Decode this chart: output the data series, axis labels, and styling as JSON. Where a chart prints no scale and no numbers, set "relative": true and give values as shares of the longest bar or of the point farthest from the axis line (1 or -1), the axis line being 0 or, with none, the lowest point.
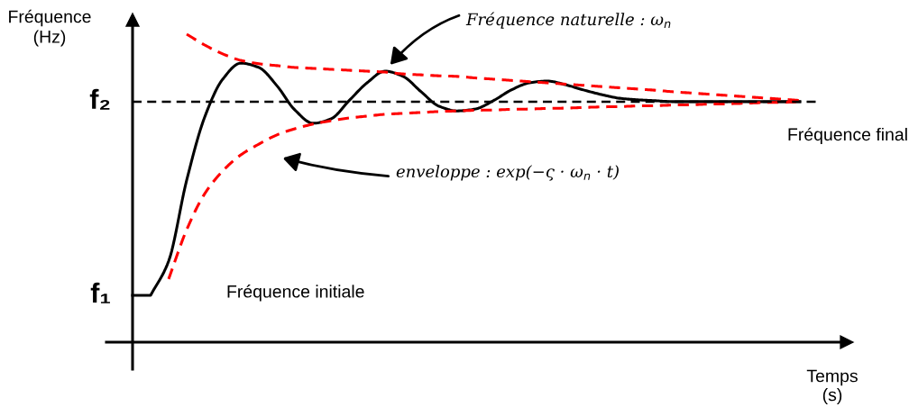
{
  "chart_data": {
    "type": "line",
    "relative": true,
    "xlabel": "Temps\n(s)",
    "ylabel": "Fréquence\n(Hz)",
    "legend": false,
    "categories": [
      null,
      null,
      null,
      null,
      null,
      null,
      null,
      null,
      null,
      null,
      null,
      null,
      null,
      null,
      null,
      null,
      null,
      null,
      null,
      null,
      null,
      null,
      null,
      null,
      null,
      null,
      null,
      null,
      null,
      null,
      null,
      null,
      null,
      null,
      null,
      null,
      null,
      null
    ],
    "series": [
      {
        "color": "#000000",
        "line_style": "solid",
        "values": [
          0.152,
          0.152,
          0.263,
          0.526,
          0.731,
          0.854,
          0.906,
          0.892,
          0.833,
          0.754,
          0.711,
          0.725,
          0.784,
          0.842,
          0.88,
          0.863,
          0.813,
          0.766,
          0.751,
          0.757,
          0.784,
          0.819,
          0.842,
          0.848,
          0.836,
          0.819,
          0.804,
          0.792,
          0.787,
          0.784,
          0.781,
          0.781,
          0.781,
          0.781,
          0.781,
          0.781,
          0.781,
          0.781
        ]
      },
      {
        "color": "#ff0000",
        "line_style": "dashed",
        "values": [
          null,
          null,
          null,
          1.0,
          0.965,
          0.936,
          0.915,
          0.904,
          0.898,
          0.892,
          0.889,
          0.886,
          0.883,
          0.88,
          0.877,
          0.871,
          0.868,
          0.865,
          0.863,
          0.858,
          0.854,
          0.85,
          0.846,
          0.842,
          0.838,
          0.834,
          0.83,
          0.826,
          0.822,
          0.818,
          0.813,
          0.809,
          0.805,
          0.801,
          0.797,
          0.793,
          0.789,
          0.785
        ]
      },
      {
        "color": "#ff0000",
        "line_style": "dashed",
        "values": [
          null,
          null,
          0.205,
          0.365,
          0.482,
          0.556,
          0.608,
          0.643,
          0.673,
          0.693,
          0.708,
          0.719,
          0.728,
          0.734,
          0.74,
          0.743,
          0.746,
          0.749,
          0.751,
          0.753,
          0.754,
          0.756,
          0.757,
          0.759,
          0.76,
          0.762,
          0.764,
          0.765,
          0.767,
          0.768,
          0.77,
          0.771,
          0.773,
          0.774,
          0.776,
          0.778,
          0.779,
          0.781
        ]
      }
    ],
    "ref_lines": [
      {
        "axis": "y",
        "value": 0.781,
        "label": "f₂",
        "color": "#000000",
        "line_style": "dashed"
      }
    ],
    "annotations": [
      "f₁",
      "Fréquence naturelle : ω$_{n}$",
      "enveloppe : exp(−ς · ω$_{n}$ · t)",
      "Fréquence initiale",
      "Fréquence final"
    ]
  }
}
